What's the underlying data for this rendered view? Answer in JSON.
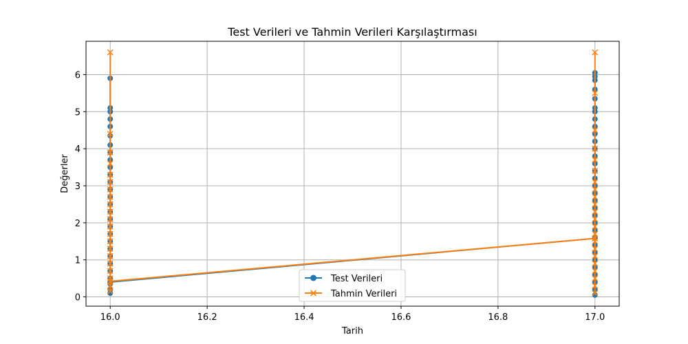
{
  "chart_data": {
    "type": "line",
    "title": "Test Verileri ve Tahmin Verileri Karşılaştırması",
    "xlabel": "Tarih",
    "ylabel": "Değerler",
    "xlim": [
      15.95,
      17.05
    ],
    "ylim": [
      -0.25,
      6.9
    ],
    "xticks": [
      16.0,
      16.2,
      16.4,
      16.6,
      16.8,
      17.0
    ],
    "xtick_labels": [
      "16.0",
      "16.2",
      "16.4",
      "16.6",
      "16.8",
      "17.0"
    ],
    "yticks": [
      0,
      1,
      2,
      3,
      4,
      5,
      6
    ],
    "ytick_labels": [
      "0",
      "1",
      "2",
      "3",
      "4",
      "5",
      "6"
    ],
    "grid": true,
    "legend_position": "lower-center",
    "series": [
      {
        "name": "Test Verileri",
        "color": "#1f77b4",
        "marker": "circle",
        "points": [
          {
            "x": 16.0,
            "y": 0.1
          },
          {
            "x": 16.0,
            "y": 0.2
          },
          {
            "x": 16.0,
            "y": 0.35
          },
          {
            "x": 16.0,
            "y": 0.5
          },
          {
            "x": 16.0,
            "y": 0.7
          },
          {
            "x": 16.0,
            "y": 0.9
          },
          {
            "x": 16.0,
            "y": 1.1
          },
          {
            "x": 16.0,
            "y": 1.3
          },
          {
            "x": 16.0,
            "y": 1.5
          },
          {
            "x": 16.0,
            "y": 1.7
          },
          {
            "x": 16.0,
            "y": 1.9
          },
          {
            "x": 16.0,
            "y": 2.1
          },
          {
            "x": 16.0,
            "y": 2.3
          },
          {
            "x": 16.0,
            "y": 2.5
          },
          {
            "x": 16.0,
            "y": 2.7
          },
          {
            "x": 16.0,
            "y": 2.9
          },
          {
            "x": 16.0,
            "y": 3.1
          },
          {
            "x": 16.0,
            "y": 3.3
          },
          {
            "x": 16.0,
            "y": 3.5
          },
          {
            "x": 16.0,
            "y": 3.7
          },
          {
            "x": 16.0,
            "y": 3.9
          },
          {
            "x": 16.0,
            "y": 4.1
          },
          {
            "x": 16.0,
            "y": 4.35
          },
          {
            "x": 16.0,
            "y": 4.6
          },
          {
            "x": 16.0,
            "y": 4.8
          },
          {
            "x": 16.0,
            "y": 5.0
          },
          {
            "x": 16.0,
            "y": 5.1
          },
          {
            "x": 16.0,
            "y": 5.9
          },
          {
            "x": 16.0,
            "y": 0.4
          },
          {
            "x": 17.0,
            "y": 1.58
          },
          {
            "x": 17.0,
            "y": 0.05
          },
          {
            "x": 17.0,
            "y": 0.2
          },
          {
            "x": 17.0,
            "y": 0.4
          },
          {
            "x": 17.0,
            "y": 0.6
          },
          {
            "x": 17.0,
            "y": 0.8
          },
          {
            "x": 17.0,
            "y": 1.0
          },
          {
            "x": 17.0,
            "y": 1.2
          },
          {
            "x": 17.0,
            "y": 1.4
          },
          {
            "x": 17.0,
            "y": 1.6
          },
          {
            "x": 17.0,
            "y": 1.8
          },
          {
            "x": 17.0,
            "y": 2.0
          },
          {
            "x": 17.0,
            "y": 2.2
          },
          {
            "x": 17.0,
            "y": 2.4
          },
          {
            "x": 17.0,
            "y": 2.6
          },
          {
            "x": 17.0,
            "y": 2.8
          },
          {
            "x": 17.0,
            "y": 3.0
          },
          {
            "x": 17.0,
            "y": 3.2
          },
          {
            "x": 17.0,
            "y": 3.4
          },
          {
            "x": 17.0,
            "y": 3.6
          },
          {
            "x": 17.0,
            "y": 3.8
          },
          {
            "x": 17.0,
            "y": 4.0
          },
          {
            "x": 17.0,
            "y": 4.2
          },
          {
            "x": 17.0,
            "y": 4.4
          },
          {
            "x": 17.0,
            "y": 4.6
          },
          {
            "x": 17.0,
            "y": 4.8
          },
          {
            "x": 17.0,
            "y": 5.0
          },
          {
            "x": 17.0,
            "y": 5.1
          },
          {
            "x": 17.0,
            "y": 5.35
          },
          {
            "x": 17.0,
            "y": 5.6
          },
          {
            "x": 17.0,
            "y": 5.85
          },
          {
            "x": 17.0,
            "y": 5.95
          },
          {
            "x": 17.0,
            "y": 6.05
          }
        ]
      },
      {
        "name": "Tahmin Verileri",
        "color": "#ff7f0e",
        "marker": "x",
        "points": [
          {
            "x": 16.0,
            "y": 0.15
          },
          {
            "x": 16.0,
            "y": 0.3
          },
          {
            "x": 16.0,
            "y": 0.5
          },
          {
            "x": 16.0,
            "y": 0.7
          },
          {
            "x": 16.0,
            "y": 0.9
          },
          {
            "x": 16.0,
            "y": 1.1
          },
          {
            "x": 16.0,
            "y": 1.3
          },
          {
            "x": 16.0,
            "y": 1.5
          },
          {
            "x": 16.0,
            "y": 1.7
          },
          {
            "x": 16.0,
            "y": 1.9
          },
          {
            "x": 16.0,
            "y": 2.1
          },
          {
            "x": 16.0,
            "y": 2.3
          },
          {
            "x": 16.0,
            "y": 2.5
          },
          {
            "x": 16.0,
            "y": 2.7
          },
          {
            "x": 16.0,
            "y": 2.9
          },
          {
            "x": 16.0,
            "y": 3.1
          },
          {
            "x": 16.0,
            "y": 3.3
          },
          {
            "x": 16.0,
            "y": 3.6
          },
          {
            "x": 16.0,
            "y": 3.9
          },
          {
            "x": 16.0,
            "y": 4.4
          },
          {
            "x": 16.0,
            "y": 6.6
          },
          {
            "x": 16.0,
            "y": 0.42
          },
          {
            "x": 17.0,
            "y": 1.58
          },
          {
            "x": 17.0,
            "y": 0.1
          },
          {
            "x": 17.0,
            "y": 0.3
          },
          {
            "x": 17.0,
            "y": 0.5
          },
          {
            "x": 17.0,
            "y": 0.7
          },
          {
            "x": 17.0,
            "y": 0.9
          },
          {
            "x": 17.0,
            "y": 1.1
          },
          {
            "x": 17.0,
            "y": 1.3
          },
          {
            "x": 17.0,
            "y": 1.5
          },
          {
            "x": 17.0,
            "y": 1.7
          },
          {
            "x": 17.0,
            "y": 1.9
          },
          {
            "x": 17.0,
            "y": 2.1
          },
          {
            "x": 17.0,
            "y": 2.3
          },
          {
            "x": 17.0,
            "y": 2.5
          },
          {
            "x": 17.0,
            "y": 2.7
          },
          {
            "x": 17.0,
            "y": 2.9
          },
          {
            "x": 17.0,
            "y": 3.1
          },
          {
            "x": 17.0,
            "y": 3.4
          },
          {
            "x": 17.0,
            "y": 3.7
          },
          {
            "x": 17.0,
            "y": 4.0
          },
          {
            "x": 17.0,
            "y": 4.5
          },
          {
            "x": 17.0,
            "y": 5.5
          },
          {
            "x": 17.0,
            "y": 6.6
          }
        ]
      }
    ]
  }
}
